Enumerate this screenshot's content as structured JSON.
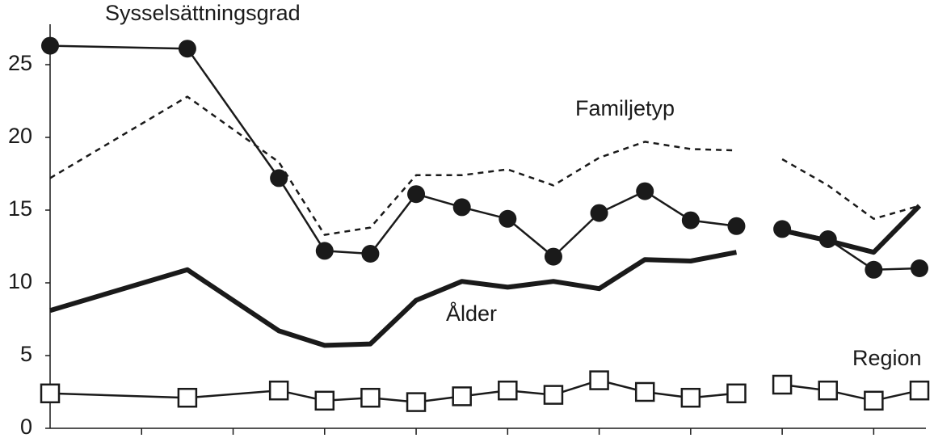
{
  "chart_data": {
    "type": "line",
    "x": [
      0,
      3,
      5,
      6,
      7,
      8,
      9,
      10,
      11,
      12,
      13,
      14,
      15,
      15.5,
      16,
      17,
      18,
      19
    ],
    "xlim": [
      0,
      19
    ],
    "xticks": [
      2,
      4,
      6,
      8,
      10,
      12,
      14,
      16,
      18
    ],
    "ylim": [
      0,
      27
    ],
    "yticks": [
      0,
      5,
      10,
      15,
      20,
      25
    ],
    "series": [
      {
        "name": "Sysselsättningsgrad",
        "color": "#1a1a1a",
        "line_style": "solid",
        "marker": "circle",
        "values": [
          26.3,
          26.1,
          17.2,
          12.2,
          12.0,
          16.1,
          15.2,
          14.4,
          11.8,
          14.8,
          16.3,
          14.3,
          13.9,
          null,
          13.7,
          13.0,
          10.9,
          11.0
        ]
      },
      {
        "name": "Familjetyp",
        "color": "#1a1a1a",
        "line_style": "dashed",
        "marker": "none",
        "values": [
          17.2,
          22.8,
          18.3,
          13.3,
          13.8,
          17.4,
          17.4,
          17.8,
          16.7,
          18.6,
          19.7,
          19.2,
          19.1,
          null,
          18.5,
          16.7,
          14.4,
          15.3
        ]
      },
      {
        "name": "Ålder",
        "color": "#1a1a1a",
        "line_style": "thick",
        "marker": "none",
        "values": [
          8.1,
          10.9,
          6.7,
          5.7,
          5.8,
          8.8,
          10.1,
          9.7,
          10.1,
          9.6,
          11.6,
          11.5,
          12.1,
          null,
          13.6,
          12.9,
          12.1,
          15.3
        ]
      },
      {
        "name": "Region",
        "color": "#1a1a1a",
        "line_style": "solid",
        "marker": "square",
        "values": [
          2.4,
          2.1,
          2.6,
          1.9,
          2.1,
          1.8,
          2.2,
          2.6,
          2.3,
          3.3,
          2.5,
          2.1,
          2.4,
          null,
          3.0,
          2.6,
          1.9,
          2.6
        ]
      }
    ]
  }
}
